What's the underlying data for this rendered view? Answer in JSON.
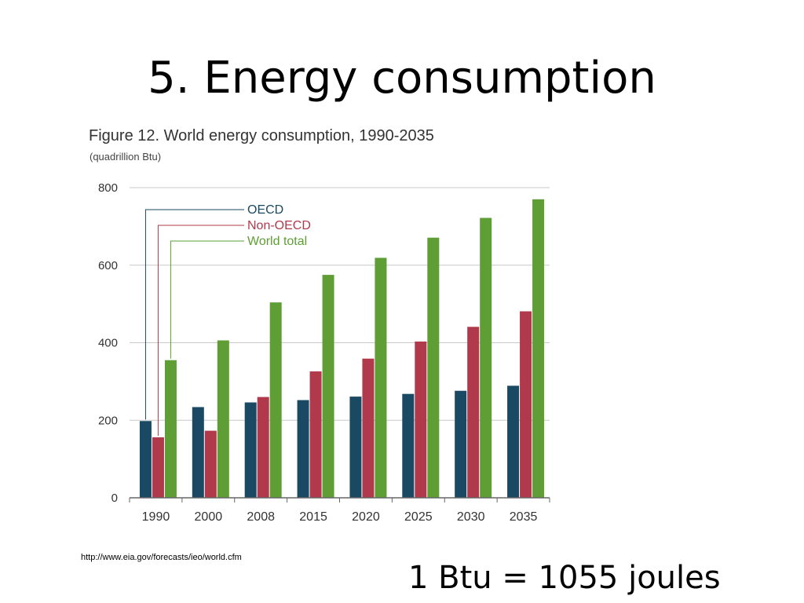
{
  "slide": {
    "title": "5. Energy consumption",
    "source_url": "http://www.eia.gov/forecasts/ieo/world.cfm",
    "note": "1 Btu = 1055 joules"
  },
  "chart_data": {
    "type": "bar",
    "title": "Figure 12. World energy consumption, 1990-2035",
    "subtitle": "(quadrillion Btu)",
    "xlabel": "",
    "ylabel": "",
    "ylim": [
      0,
      800
    ],
    "yticks": [
      "0",
      "200",
      "400",
      "600",
      "800"
    ],
    "categories": [
      "1990",
      "2000",
      "2008",
      "2015",
      "2020",
      "2025",
      "2030",
      "2035"
    ],
    "series": [
      {
        "name": "OECD",
        "color": "#1a4a63",
        "values": [
          198,
          234,
          246,
          252,
          261,
          268,
          276,
          289
        ]
      },
      {
        "name": "Non-OECD",
        "color": "#b03a4b",
        "values": [
          156,
          173,
          260,
          326,
          359,
          403,
          441,
          481
        ]
      },
      {
        "name": "World total",
        "color": "#5e9e35",
        "values": [
          355,
          406,
          504,
          575,
          619,
          671,
          722,
          770
        ]
      }
    ],
    "grid": true,
    "legend": "top-left, with leader lines to the 1990 bars"
  }
}
